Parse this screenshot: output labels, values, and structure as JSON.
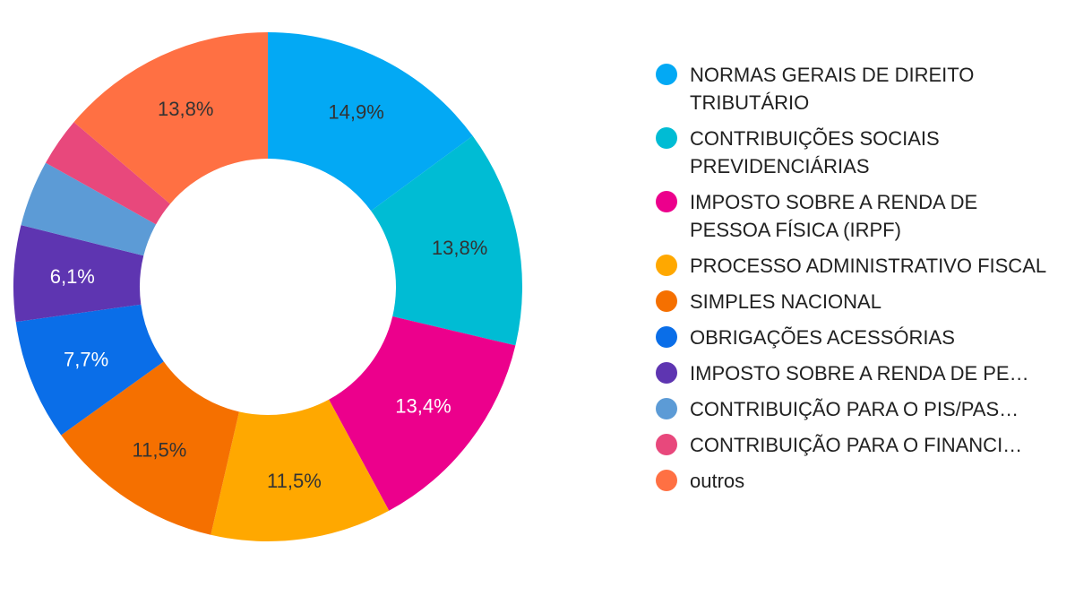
{
  "chart_data": {
    "type": "pie",
    "donut": true,
    "title": "",
    "legend_position": "right",
    "slices": [
      {
        "label": "NORMAS GERAIS DE DIREITO TRIBUTÁRIO",
        "value": 14.9,
        "value_label": "14,9%",
        "color": "#03a9f4",
        "label_color": "#333333"
      },
      {
        "label": "CONTRIBUIÇÕES SOCIAIS PREVIDENCIÁRIAS",
        "value": 13.8,
        "value_label": "13,8%",
        "color": "#00bcd4",
        "label_color": "#333333"
      },
      {
        "label": "IMPOSTO SOBRE A RENDA DE PESSOA FÍSICA (IRPF)",
        "value": 13.4,
        "value_label": "13,4%",
        "color": "#ec008c",
        "label_color": "#ffffff"
      },
      {
        "label": "PROCESSO ADMINISTRATIVO FISCAL",
        "value": 11.5,
        "value_label": "11,5%",
        "color": "#ffa800",
        "label_color": "#333333"
      },
      {
        "label": "SIMPLES NACIONAL",
        "value": 11.5,
        "value_label": "11,5%",
        "color": "#f57000",
        "label_color": "#333333"
      },
      {
        "label": "OBRIGAÇÕES ACESSÓRIAS",
        "value": 7.7,
        "value_label": "7,7%",
        "color": "#0a6ee8",
        "label_color": "#ffffff"
      },
      {
        "label": "IMPOSTO SOBRE A RENDA DE PE…",
        "value": 6.1,
        "value_label": "6,1%",
        "color": "#5e35b1",
        "label_color": "#ffffff"
      },
      {
        "label": "CONTRIBUIÇÃO PARA O PIS/PAS…",
        "value": 4.2,
        "value_label": "",
        "color": "#5c9bd6",
        "label_color": "#ffffff"
      },
      {
        "label": "CONTRIBUIÇÃO PARA O FINANCI…",
        "value": 3.1,
        "value_label": "",
        "color": "#e8487c",
        "label_color": "#ffffff"
      },
      {
        "label": "outros",
        "value": 13.8,
        "value_label": "13,8%",
        "color": "#ff7043",
        "label_color": "#333333"
      }
    ],
    "legend": [
      "NORMAS GERAIS DE DIREITO TRIBUTÁRIO",
      "CONTRIBUIÇÕES SOCIAIS PREVIDENCIÁRIAS",
      "IMPOSTO SOBRE A RENDA DE PESSOA FÍSICA (IRPF)",
      "PROCESSO ADMINISTRATIVO FISCAL",
      "SIMPLES NACIONAL",
      "OBRIGAÇÕES ACESSÓRIAS",
      "IMPOSTO SOBRE A RENDA DE PE…",
      "CONTRIBUIÇÃO PARA O PIS/PAS…",
      "CONTRIBUIÇÃO PARA O FINANCI…",
      "outros"
    ]
  }
}
